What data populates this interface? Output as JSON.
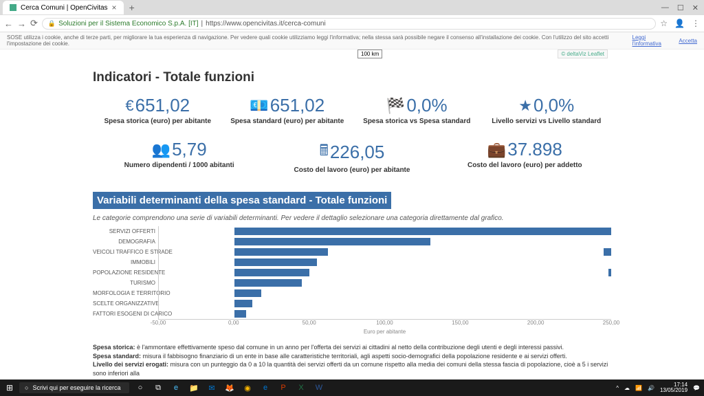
{
  "browser": {
    "tab_title": "Cerca Comuni | OpenCivitas",
    "security": "Soluzioni per il Sistema Economico S.p.A. [IT]",
    "url": "https://www.opencivitas.it/cerca-comuni",
    "cookie_text": "SOSE utilizza i cookie, anche di terze parti, per migliorare la tua esperienza di navigazione. Per vedere quali cookie utilizziamo leggi l'informativa; nella stessa sarà possibile negare il consenso all'installazione dei cookie. Con l'utilizzo del sito accetti l'impostazione dei cookie.",
    "cookie_link1": "Leggi l'informativa",
    "cookie_link2": "Accetta"
  },
  "map": {
    "scale": "100 km",
    "attribution": "© deltaViz Leaflet"
  },
  "heading": "Indicatori - Totale funzioni",
  "kpis_row1": [
    {
      "icon": "€",
      "value": "651,02",
      "label": "Spesa storica (euro) per abitante"
    },
    {
      "icon": "💶",
      "value": "651,02",
      "label": "Spesa standard (euro) per abitante"
    },
    {
      "icon": "🏁",
      "value": "0,0%",
      "label": "Spesa storica vs Spesa standard"
    },
    {
      "icon": "★",
      "value": "0,0%",
      "label": "Livello servizi vs Livello standard"
    }
  ],
  "kpis_row2": [
    {
      "icon": "👥",
      "value": "5,79",
      "label": "Numero dipendenti / 1000 abitanti"
    },
    {
      "icon": "🖩",
      "value": "226,05",
      "label": "Costo del lavoro (euro) per abitante"
    },
    {
      "icon": "💼",
      "value": "37.898",
      "label": "Costo del lavoro (euro) per addetto"
    }
  ],
  "chart": {
    "title": "Variabili determinanti della spesa standard - Totale funzioni",
    "note": "Le categorie comprendono una serie di variabili determinanti. Per vedere il dettaglio selezionare una categoria direttamente dal grafico.",
    "categories": [
      "SERVIZI OFFERTI",
      "DEMOGRAFIA",
      "VEICOLI TRAFFICO E STRADE",
      "IMMOBILI",
      "POPOLAZIONE RESIDENTE",
      "TURISMO",
      "MORFOLOGIA E TERRITORIO",
      "SCELTE ORGANIZZATIVE",
      "FATTORI ESOGENI DI CARICO"
    ],
    "values": [
      240,
      130,
      62,
      55,
      50,
      45,
      18,
      12,
      8
    ],
    "mini_values": [
      12,
      0,
      5,
      0,
      2,
      0,
      0,
      0,
      0
    ],
    "bar_color": "#3b6fa8",
    "xlim": [
      -50,
      250
    ],
    "xticks": [
      -50,
      0,
      50,
      100,
      150,
      200,
      250
    ],
    "xtick_labels": [
      "-50,00",
      "0,00",
      "50,00",
      "100,00",
      "150,00",
      "200,00",
      "250,00"
    ],
    "xlabel": "Euro per abitante"
  },
  "definitions": [
    {
      "term": "Spesa storica:",
      "text": " è l'ammontare effettivamente speso dal comune in un anno per l'offerta dei servizi ai cittadini al netto della contribuzione degli utenti e degli interessi passivi."
    },
    {
      "term": "Spesa standard:",
      "text": " misura il fabbisogno finanziario di un ente in base alle caratteristiche territoriali, agli aspetti socio-demografici della popolazione residente e ai servizi offerti."
    },
    {
      "term": "Livello dei servizi erogati:",
      "text": " misura con un punteggio da 0 a 10 la quantità dei servizi offerti da un comune rispetto alla media dei comuni della stessa fascia di popolazione, cioè a 5 i servizi sono inferiori alla"
    }
  ],
  "taskbar": {
    "search_placeholder": "Scrivi qui per eseguire la ricerca",
    "time": "17:14",
    "date": "13/05/2019"
  }
}
